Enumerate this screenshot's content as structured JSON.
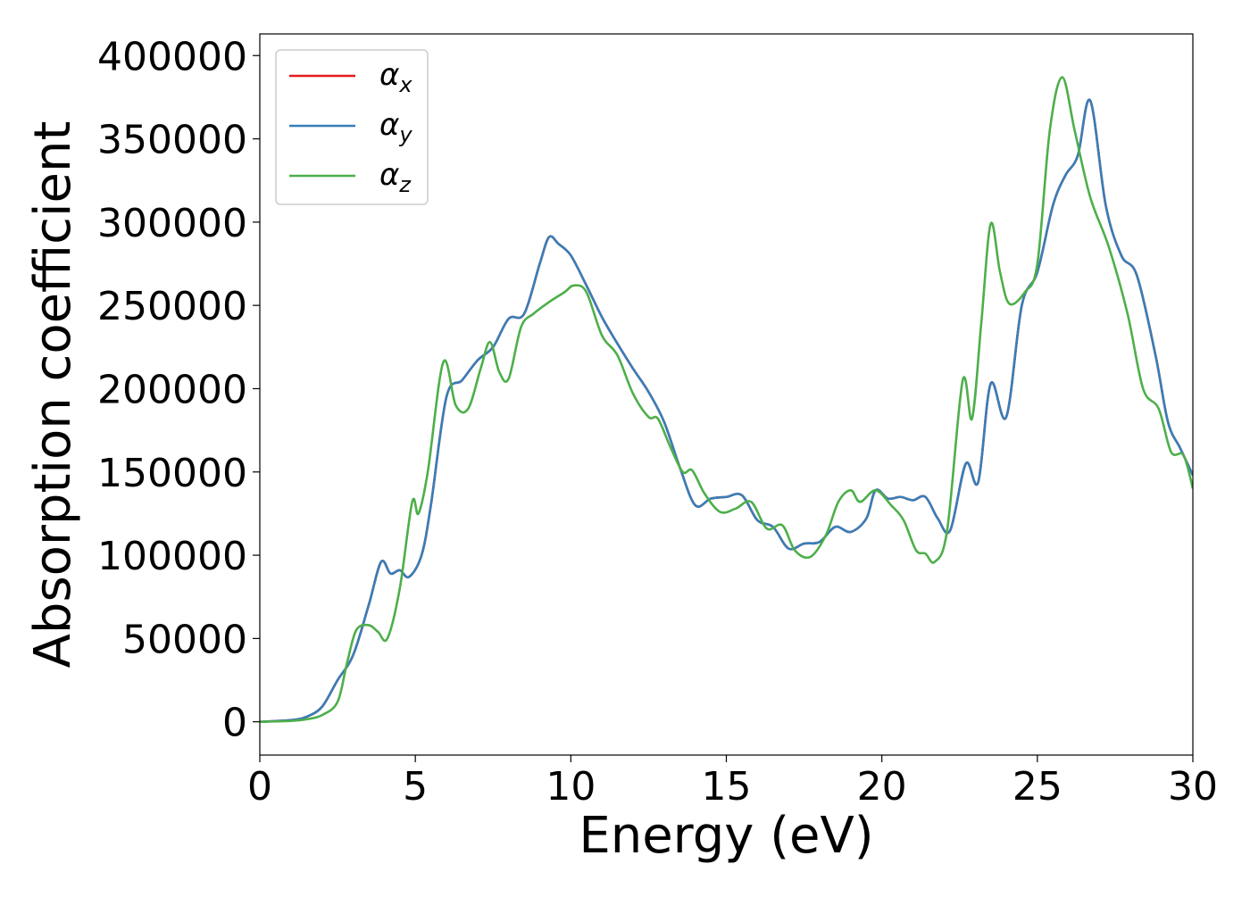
{
  "chart_data": {
    "type": "line",
    "title": "",
    "xlabel": "Energy (eV)",
    "ylabel": "Absorption coefficient",
    "xlim": [
      0,
      30
    ],
    "ylim": [
      -20000,
      413000
    ],
    "xticks": [
      0,
      5,
      10,
      15,
      20,
      25,
      30
    ],
    "yticks": [
      0,
      50000,
      100000,
      150000,
      200000,
      250000,
      300000,
      350000,
      400000
    ],
    "grid": false,
    "legend": {
      "placement": "top-left",
      "entries": [
        {
          "symbol": "α",
          "subscript": "x",
          "color": "#e41a1c"
        },
        {
          "symbol": "α",
          "subscript": "y",
          "color": "#377eb8"
        },
        {
          "symbol": "α",
          "subscript": "z",
          "color": "#4daf4a"
        }
      ]
    },
    "series": [
      {
        "name": "αx",
        "color": "#e41a1c",
        "x": [
          0,
          1,
          1.5,
          2,
          2.5,
          3,
          3.5,
          3.9,
          4.2,
          4.5,
          4.8,
          5.2,
          5.5,
          6,
          6.5,
          7,
          7.5,
          8,
          8.5,
          9,
          9.3,
          9.6,
          10,
          10.5,
          11,
          11.5,
          12,
          12.5,
          13,
          13.5,
          14,
          14.5,
          15,
          15.5,
          16,
          16.5,
          17,
          17.5,
          18,
          18.5,
          19,
          19.5,
          19.8,
          20.2,
          20.6,
          21,
          21.4,
          21.8,
          22.2,
          22.7,
          23.1,
          23.5,
          24,
          24.5,
          25,
          25.5,
          25.9,
          26.3,
          26.7,
          27.2,
          27.7,
          28.2,
          28.8,
          29.2,
          29.6,
          30
        ],
        "y": [
          0,
          1000,
          3000,
          9000,
          25000,
          40000,
          70000,
          96000,
          89000,
          91000,
          87000,
          100000,
          130000,
          195000,
          205000,
          217000,
          225000,
          242000,
          245000,
          275000,
          291000,
          287000,
          280000,
          262000,
          243000,
          227000,
          212000,
          198000,
          180000,
          153000,
          130000,
          134000,
          135000,
          136000,
          121000,
          117000,
          104000,
          107000,
          108000,
          117000,
          114000,
          122000,
          139000,
          134000,
          135000,
          133000,
          135000,
          122000,
          115000,
          155000,
          144000,
          203000,
          183000,
          250000,
          270000,
          310000,
          328000,
          340000,
          373000,
          310000,
          280000,
          268000,
          220000,
          180000,
          164000,
          148000
        ]
      },
      {
        "name": "αy",
        "color": "#377eb8",
        "x": [
          0,
          1,
          1.5,
          2,
          2.5,
          3,
          3.5,
          3.9,
          4.2,
          4.5,
          4.8,
          5.2,
          5.5,
          6,
          6.5,
          7,
          7.5,
          8,
          8.5,
          9,
          9.3,
          9.6,
          10,
          10.5,
          11,
          11.5,
          12,
          12.5,
          13,
          13.5,
          14,
          14.5,
          15,
          15.5,
          16,
          16.5,
          17,
          17.5,
          18,
          18.5,
          19,
          19.5,
          19.8,
          20.2,
          20.6,
          21,
          21.4,
          21.8,
          22.2,
          22.7,
          23.1,
          23.5,
          24,
          24.5,
          25,
          25.5,
          25.9,
          26.3,
          26.7,
          27.2,
          27.7,
          28.2,
          28.8,
          29.2,
          29.6,
          30
        ],
        "y": [
          0,
          1000,
          3000,
          9000,
          25000,
          40000,
          70000,
          96000,
          89000,
          91000,
          87000,
          100000,
          130000,
          195000,
          205000,
          217000,
          225000,
          242000,
          245000,
          275000,
          291000,
          287000,
          280000,
          262000,
          243000,
          227000,
          212000,
          198000,
          180000,
          153000,
          130000,
          134000,
          135000,
          136000,
          121000,
          117000,
          104000,
          107000,
          108000,
          117000,
          114000,
          122000,
          139000,
          134000,
          135000,
          133000,
          135000,
          122000,
          115000,
          155000,
          144000,
          203000,
          183000,
          250000,
          270000,
          310000,
          328000,
          340000,
          373000,
          310000,
          280000,
          268000,
          220000,
          180000,
          164000,
          148000
        ]
      },
      {
        "name": "αz",
        "color": "#4daf4a",
        "x": [
          0,
          1,
          1.5,
          2,
          2.5,
          2.8,
          3.1,
          3.5,
          3.8,
          4.1,
          4.5,
          4.9,
          5.1,
          5.4,
          5.9,
          6.3,
          6.7,
          7.1,
          7.4,
          7.7,
          8.0,
          8.4,
          8.8,
          9.3,
          9.8,
          10.1,
          10.5,
          11,
          11.5,
          12,
          12.5,
          12.8,
          13.2,
          13.6,
          13.9,
          14.3,
          14.8,
          15.3,
          15.8,
          16.3,
          16.8,
          17.2,
          17.7,
          18.2,
          18.6,
          19,
          19.3,
          19.8,
          20.3,
          20.7,
          21.1,
          21.4,
          21.7,
          22.1,
          22.6,
          22.9,
          23.2,
          23.5,
          23.8,
          24.1,
          24.6,
          25,
          25.4,
          25.8,
          26.2,
          26.7,
          27.3,
          27.9,
          28.4,
          28.9,
          29.3,
          29.7,
          30
        ],
        "y": [
          0,
          500,
          1500,
          4000,
          12000,
          35000,
          55000,
          58000,
          54000,
          50000,
          80000,
          132000,
          125000,
          150000,
          216000,
          190000,
          188000,
          212000,
          228000,
          210000,
          206000,
          237000,
          245000,
          252000,
          258000,
          262000,
          258000,
          232000,
          220000,
          197000,
          183000,
          182000,
          165000,
          150000,
          151000,
          137000,
          126000,
          128000,
          132000,
          116000,
          118000,
          103000,
          99000,
          112000,
          132000,
          139000,
          132000,
          139000,
          130000,
          121000,
          103000,
          101000,
          96000,
          115000,
          205000,
          182000,
          240000,
          299000,
          270000,
          251000,
          258000,
          275000,
          355000,
          387000,
          355000,
          315000,
          285000,
          245000,
          200000,
          188000,
          162000,
          160000,
          140000
        ]
      }
    ]
  }
}
